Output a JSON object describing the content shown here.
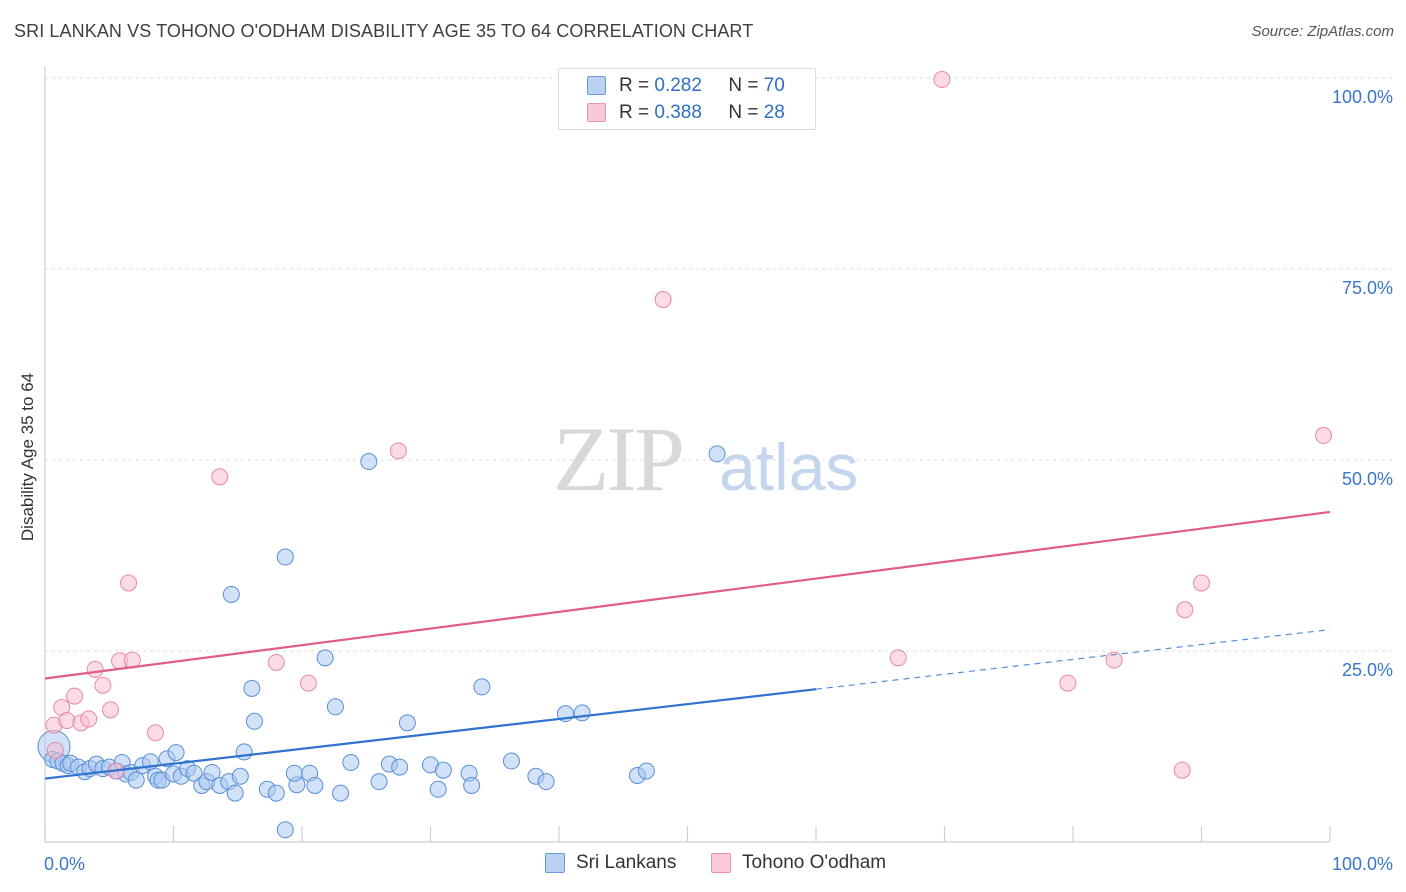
{
  "title": "SRI LANKAN VS TOHONO O'ODHAM DISABILITY AGE 35 TO 64 CORRELATION CHART",
  "source": "Source: ZipAtlas.com",
  "watermark": {
    "zip": "ZIP",
    "atlas": "atlas"
  },
  "legend": {
    "series1": {
      "r_label": "R =",
      "r_value": "0.282",
      "n_label": "N =",
      "n_value": "70"
    },
    "series2": {
      "r_label": "R =",
      "r_value": "0.388",
      "n_label": "N =",
      "n_value": "28"
    }
  },
  "bottom_legend": {
    "series1": "Sri Lankans",
    "series2": "Tohono O'odham"
  },
  "colors": {
    "blue_fill": "#a9c8f2",
    "blue_stroke": "#5b8fd6",
    "blue_line": "#2f72d0",
    "pink_fill": "#f7bfd0",
    "pink_stroke": "#e68aa6",
    "pink_line": "#e05c8a",
    "tick_label": "#3a76c9",
    "grid": "#dcdcdc"
  },
  "chart_data": {
    "type": "scatter",
    "title": "SRI LANKAN VS TOHONO O'ODHAM DISABILITY AGE 35 TO 64 CORRELATION CHART",
    "xlabel": "",
    "ylabel": "Disability Age 35 to 64",
    "xlim": [
      0,
      100
    ],
    "ylim": [
      0,
      100
    ],
    "x_tick_labels": [
      "0.0%",
      "100.0%"
    ],
    "y_tick_labels": [
      "25.0%",
      "50.0%",
      "75.0%",
      "100.0%"
    ],
    "y_ticks": [
      25,
      50,
      75,
      100
    ],
    "series": [
      {
        "name": "Sri Lankans",
        "R": 0.282,
        "N": 70,
        "trend": {
          "x0": 0,
          "y0": 8.3,
          "x1": 60,
          "y1": 20.0,
          "dashed_to_x": 100,
          "dashed_to_y": 27.8
        },
        "points": [
          [
            0.7,
            12.5
          ],
          [
            0.6,
            10.8
          ],
          [
            1.0,
            10.6
          ],
          [
            1.4,
            10.3
          ],
          [
            1.8,
            10.0
          ],
          [
            2.0,
            10.3
          ],
          [
            2.6,
            9.8
          ],
          [
            3.1,
            9.2
          ],
          [
            3.5,
            9.6
          ],
          [
            4.0,
            10.2
          ],
          [
            4.5,
            9.6
          ],
          [
            5.0,
            9.8
          ],
          [
            5.6,
            9.3
          ],
          [
            6.0,
            10.4
          ],
          [
            6.3,
            8.9
          ],
          [
            6.7,
            9.1
          ],
          [
            7.1,
            8.1
          ],
          [
            7.6,
            10.0
          ],
          [
            8.2,
            10.5
          ],
          [
            8.6,
            8.6
          ],
          [
            8.8,
            8.1
          ],
          [
            9.1,
            8.1
          ],
          [
            9.5,
            10.9
          ],
          [
            10.0,
            8.9
          ],
          [
            10.2,
            11.7
          ],
          [
            10.6,
            8.6
          ],
          [
            11.1,
            9.6
          ],
          [
            11.6,
            9.0
          ],
          [
            12.2,
            7.4
          ],
          [
            12.6,
            7.9
          ],
          [
            13.0,
            9.1
          ],
          [
            13.6,
            7.4
          ],
          [
            14.3,
            7.9
          ],
          [
            14.8,
            6.4
          ],
          [
            15.5,
            11.8
          ],
          [
            15.2,
            8.6
          ],
          [
            16.1,
            20.1
          ],
          [
            16.3,
            15.8
          ],
          [
            17.3,
            6.9
          ],
          [
            18.0,
            6.4
          ],
          [
            18.7,
            1.6
          ],
          [
            19.6,
            7.5
          ],
          [
            19.4,
            9.0
          ],
          [
            20.6,
            9.0
          ],
          [
            21.0,
            7.4
          ],
          [
            22.6,
            17.7
          ],
          [
            23.0,
            6.4
          ],
          [
            23.8,
            10.4
          ],
          [
            26.0,
            7.9
          ],
          [
            26.8,
            10.2
          ],
          [
            27.6,
            9.8
          ],
          [
            28.2,
            15.6
          ],
          [
            30.6,
            6.9
          ],
          [
            33.0,
            9.0
          ],
          [
            33.2,
            7.4
          ],
          [
            34.0,
            20.3
          ],
          [
            36.3,
            10.6
          ],
          [
            38.2,
            8.6
          ],
          [
            39.0,
            7.9
          ],
          [
            40.5,
            16.8
          ],
          [
            41.8,
            16.9
          ],
          [
            46.1,
            8.7
          ],
          [
            46.8,
            9.3
          ],
          [
            52.3,
            50.8
          ],
          [
            14.5,
            32.4
          ],
          [
            18.7,
            37.3
          ],
          [
            25.2,
            49.8
          ],
          [
            21.8,
            24.1
          ],
          [
            30.0,
            10.1
          ],
          [
            31.0,
            9.4
          ]
        ]
      },
      {
        "name": "Tohono O'odham",
        "R": 0.388,
        "N": 28,
        "trend": {
          "x0": 0,
          "y0": 21.4,
          "x1": 100,
          "y1": 43.2
        },
        "points": [
          [
            0.7,
            15.3
          ],
          [
            0.8,
            12.0
          ],
          [
            1.3,
            17.6
          ],
          [
            1.7,
            15.9
          ],
          [
            2.3,
            19.1
          ],
          [
            2.8,
            15.6
          ],
          [
            3.4,
            16.1
          ],
          [
            3.9,
            22.6
          ],
          [
            4.5,
            20.5
          ],
          [
            5.1,
            17.3
          ],
          [
            5.5,
            9.3
          ],
          [
            5.8,
            23.7
          ],
          [
            6.5,
            33.9
          ],
          [
            6.8,
            23.8
          ],
          [
            8.6,
            14.3
          ],
          [
            13.6,
            47.8
          ],
          [
            18.0,
            23.5
          ],
          [
            20.5,
            20.8
          ],
          [
            27.5,
            51.2
          ],
          [
            48.1,
            71.0
          ],
          [
            66.4,
            24.1
          ],
          [
            69.8,
            99.8
          ],
          [
            79.6,
            20.8
          ],
          [
            83.2,
            23.8
          ],
          [
            88.5,
            9.4
          ],
          [
            88.7,
            30.4
          ],
          [
            90.0,
            33.9
          ],
          [
            99.5,
            53.2
          ]
        ]
      }
    ]
  }
}
